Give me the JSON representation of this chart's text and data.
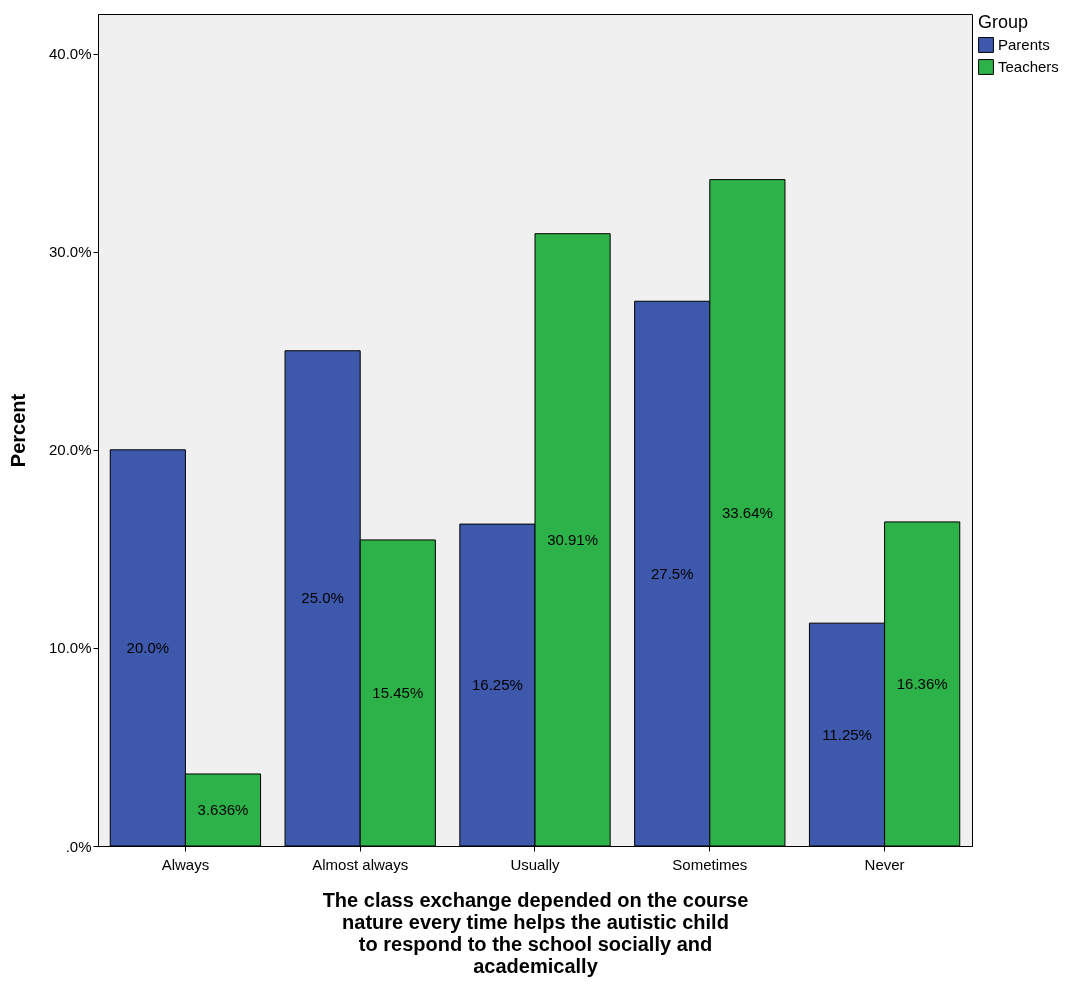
{
  "chart_data": {
    "type": "bar",
    "xlabel": "The class exchange depended on the course nature every time helps the autistic child to respond to the school socially and academically",
    "ylabel": "Percent",
    "legend_title": "Group",
    "categories": [
      "Always",
      "Almost always",
      "Usually",
      "Sometimes",
      "Never"
    ],
    "series": [
      {
        "name": "Parents",
        "color": "#3e58ac",
        "values": [
          20.0,
          25.0,
          16.25,
          27.5,
          11.25
        ],
        "value_labels": [
          "20.0%",
          "25.0%",
          "16.25%",
          "27.5%",
          "11.25%"
        ]
      },
      {
        "name": "Teachers",
        "color": "#2db24a",
        "values": [
          3.636,
          15.45,
          30.91,
          33.64,
          16.36
        ],
        "value_labels": [
          "3.636%",
          "15.45%",
          "30.91%",
          "33.64%",
          "16.36%"
        ]
      }
    ],
    "ylim": [
      0,
      42
    ],
    "yticks": [
      {
        "value": 0,
        "label": ".0%"
      },
      {
        "value": 10,
        "label": "10.0%"
      },
      {
        "value": 20,
        "label": "20.0%"
      },
      {
        "value": 30,
        "label": "30.0%"
      },
      {
        "value": 40,
        "label": "40.0%"
      }
    ],
    "grid": false,
    "legend": "top right"
  }
}
